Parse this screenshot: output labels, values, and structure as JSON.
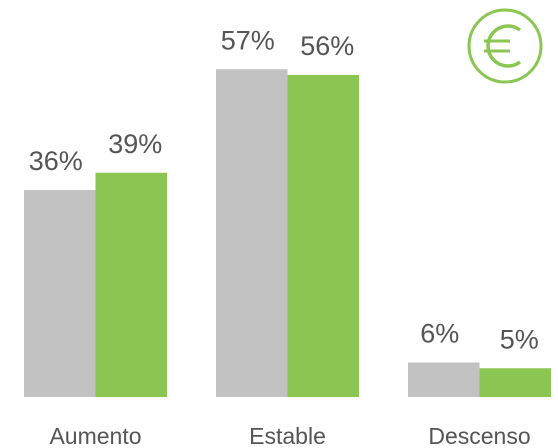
{
  "chart_data": {
    "type": "bar",
    "categories": [
      "Aumento",
      "Estable",
      "Descenso"
    ],
    "series": [
      {
        "color": "#c2c2c2",
        "values": [
          36,
          57,
          6
        ],
        "value_labels": [
          "36%",
          "57%",
          "6%"
        ]
      },
      {
        "color": "#8bc653",
        "values": [
          39,
          56,
          5
        ],
        "value_labels": [
          "39%",
          "56%",
          "5%"
        ]
      }
    ]
  }
}
